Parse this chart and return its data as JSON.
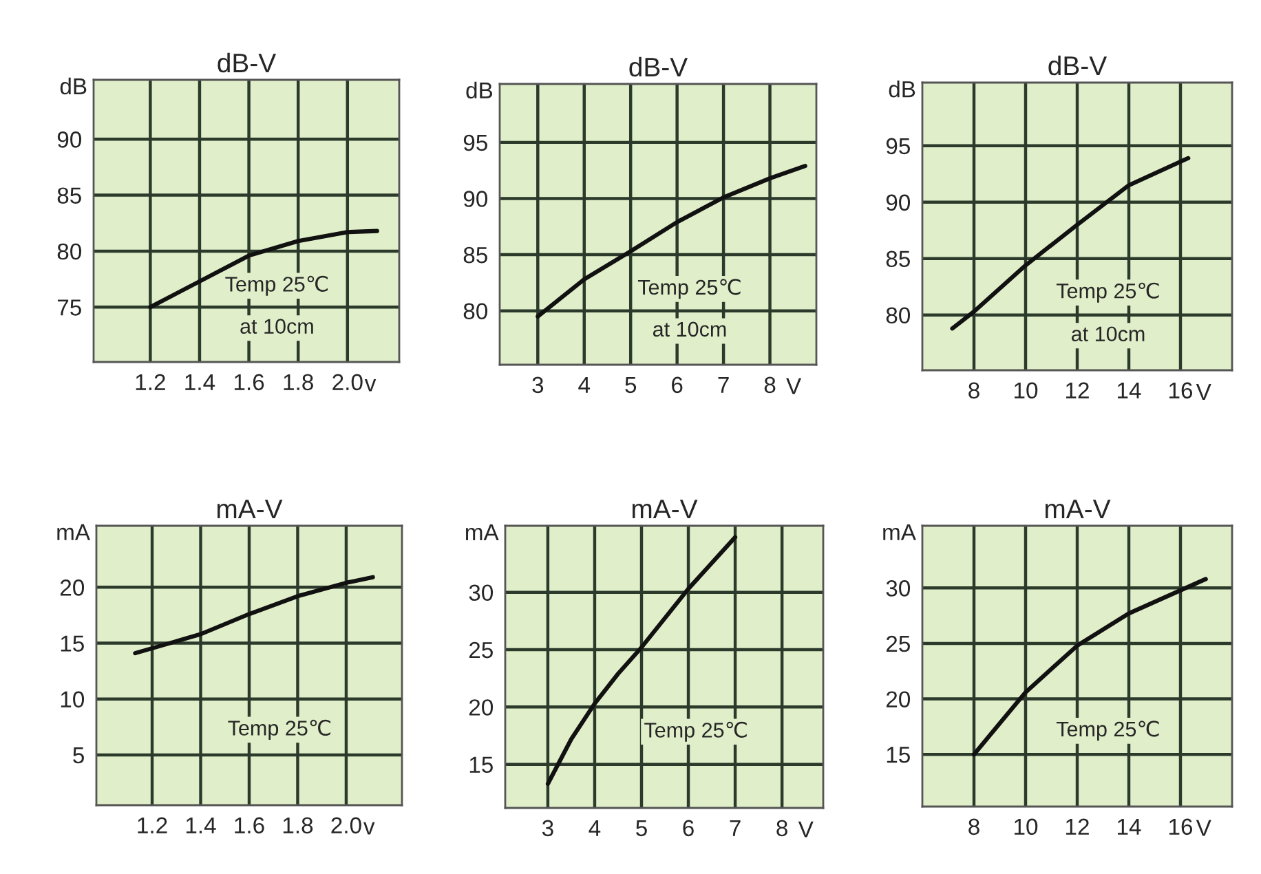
{
  "chart_data": [
    {
      "type": "line",
      "title": "dB-V",
      "ylabel": "dB",
      "xlabel": "v",
      "annotations": [
        "Temp 25℃",
        "at 10cm"
      ],
      "xlim": [
        0.97,
        2.21
      ],
      "ylim": [
        70.1,
        95.3
      ],
      "xticks": [
        1.2,
        1.4,
        1.6,
        1.8,
        {
          "value": 2.0,
          "label": "2.0"
        }
      ],
      "yticks": [
        75,
        80,
        85,
        90
      ],
      "grid": true,
      "series": [
        {
          "color": "#111111",
          "x": [
            1.2,
            1.4,
            1.6,
            1.8,
            2.0,
            2.12
          ],
          "values": [
            75.0,
            77.3,
            79.6,
            80.9,
            81.7,
            81.8
          ]
        }
      ]
    },
    {
      "type": "line",
      "title": "dB-V",
      "ylabel": "dB",
      "xlabel": "V",
      "annotations": [
        "Temp 25℃",
        "at 10cm"
      ],
      "xlim": [
        2.18,
        9.0
      ],
      "ylim": [
        75.2,
        100.2
      ],
      "xticks": [
        3,
        4,
        5,
        6,
        7,
        8
      ],
      "yticks": [
        80,
        85,
        90,
        95
      ],
      "grid": true,
      "series": [
        {
          "color": "#111111",
          "x": [
            3,
            4,
            5,
            6,
            7,
            8,
            8.76
          ],
          "values": [
            79.5,
            82.8,
            85.3,
            87.9,
            90.1,
            91.8,
            92.9
          ]
        }
      ]
    },
    {
      "type": "line",
      "title": "dB-V",
      "ylabel": "dB",
      "xlabel": "V",
      "annotations": [
        "Temp 25℃",
        "at 10cm"
      ],
      "xlim": [
        6.0,
        18.0
      ],
      "ylim": [
        75.1,
        100.6
      ],
      "xticks": [
        8,
        10,
        12,
        14,
        16
      ],
      "yticks": [
        80,
        85,
        90,
        95
      ],
      "grid": true,
      "series": [
        {
          "color": "#111111",
          "x": [
            7.16,
            8,
            10,
            12,
            14,
            16.3
          ],
          "values": [
            78.8,
            80.3,
            84.4,
            88.0,
            91.5,
            93.9
          ]
        }
      ]
    },
    {
      "type": "line",
      "title": "mA-V",
      "ylabel": "mA",
      "xlabel": "v",
      "annotations": [
        "Temp 25℃"
      ],
      "xlim": [
        0.97,
        2.23
      ],
      "ylim": [
        0.5,
        25.5
      ],
      "xticks": [
        1.2,
        1.4,
        1.6,
        1.8,
        {
          "value": 2.0,
          "label": "2.0"
        }
      ],
      "yticks": [
        5,
        10,
        15,
        20
      ],
      "grid": true,
      "series": [
        {
          "color": "#111111",
          "x": [
            1.13,
            1.4,
            1.6,
            1.8,
            2.0,
            2.11
          ],
          "values": [
            14.1,
            15.8,
            17.6,
            19.2,
            20.4,
            20.9
          ]
        }
      ]
    },
    {
      "type": "line",
      "title": "mA-V",
      "ylabel": "mA",
      "xlabel": "V",
      "annotations": [
        "Temp 25℃"
      ],
      "xlim": [
        2.09,
        8.88
      ],
      "ylim": [
        11.2,
        35.8
      ],
      "xticks": [
        3,
        4,
        5,
        6,
        7,
        8
      ],
      "yticks": [
        15,
        20,
        25,
        30
      ],
      "grid": true,
      "series": [
        {
          "color": "#111111",
          "x": [
            3,
            3.5,
            4,
            4.5,
            5,
            6,
            7.0
          ],
          "values": [
            13.3,
            17.2,
            20.3,
            22.9,
            25.2,
            30.3,
            34.8
          ]
        }
      ]
    },
    {
      "type": "line",
      "title": "mA-V",
      "ylabel": "mA",
      "xlabel": "V",
      "annotations": [
        "Temp 25℃"
      ],
      "xlim": [
        6.0,
        18.0
      ],
      "ylim": [
        10.3,
        35.6
      ],
      "xticks": [
        8,
        10,
        12,
        14,
        16
      ],
      "yticks": [
        15,
        20,
        25,
        30
      ],
      "grid": true,
      "series": [
        {
          "color": "#111111",
          "x": [
            8,
            9,
            10,
            12,
            14,
            16.98
          ],
          "values": [
            15.0,
            17.8,
            20.6,
            24.8,
            27.7,
            30.8
          ]
        }
      ]
    }
  ]
}
